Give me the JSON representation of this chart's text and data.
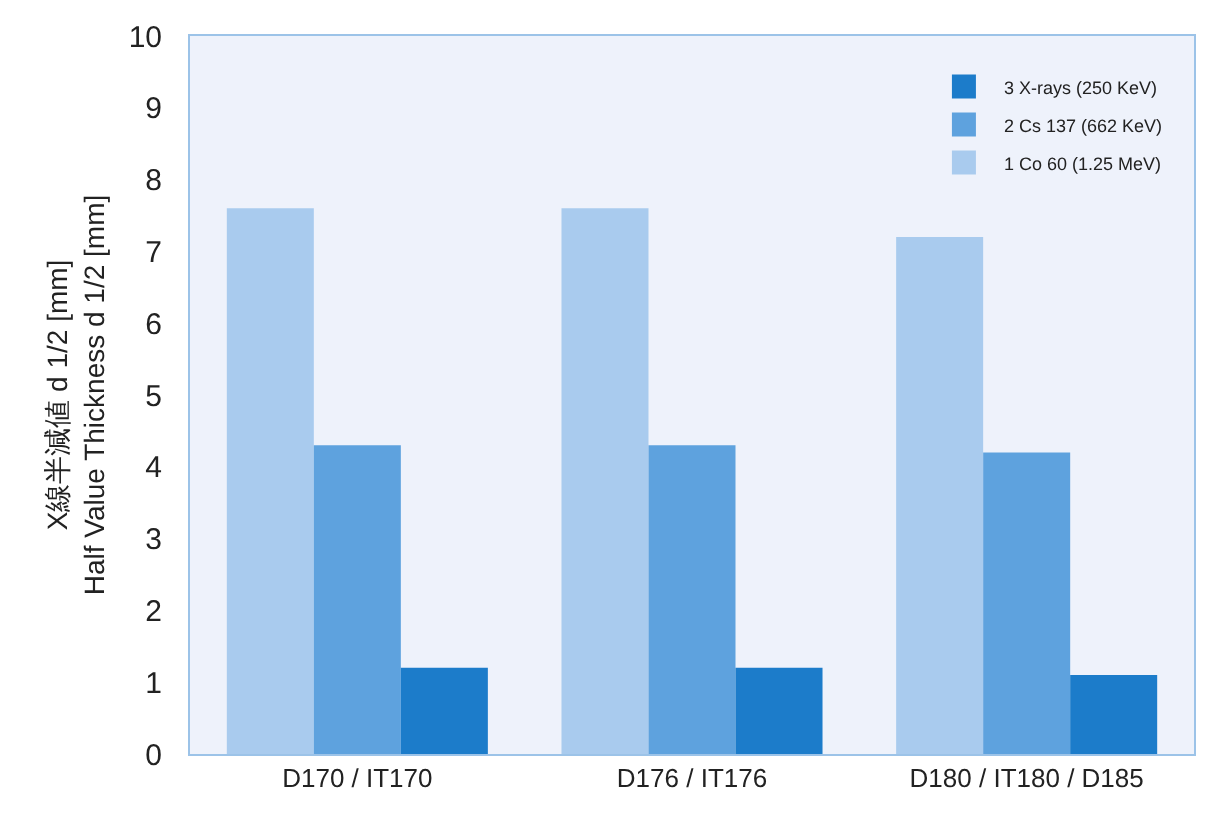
{
  "chart_data": {
    "type": "bar",
    "ylabel": "X線半減値 d 1/2 [mm]\nHalf Value Thickness d 1/2 [mm]",
    "categories": [
      "D170 / IT170",
      "D176 / IT176",
      "D180 / IT180 / D185"
    ],
    "series": [
      {
        "name": "1 Co 60 (1.25 MeV)",
        "color": "#a9cbee",
        "values": [
          7.6,
          7.6,
          7.2
        ]
      },
      {
        "name": "2 Cs 137 (662 KeV)",
        "color": "#5ea2de",
        "values": [
          4.3,
          4.3,
          4.2
        ]
      },
      {
        "name": "3 X-rays (250 KeV)",
        "color": "#1c7cca",
        "values": [
          1.2,
          1.2,
          1.1
        ]
      }
    ],
    "ylim": [
      0,
      10
    ],
    "yticks": [
      0,
      1,
      2,
      3,
      4,
      5,
      6,
      7,
      8,
      9,
      10
    ],
    "grid": false,
    "legend": "top right"
  }
}
